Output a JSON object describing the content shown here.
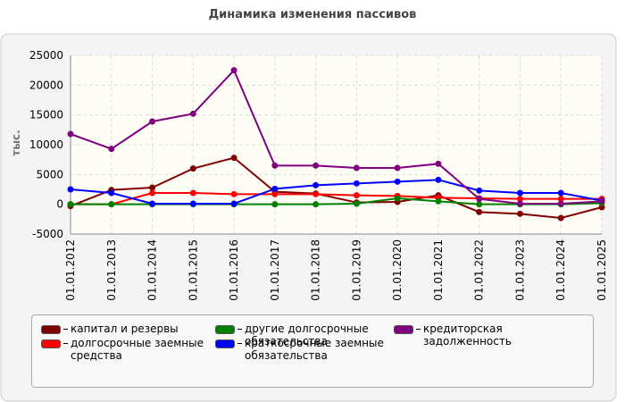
{
  "chart_data": {
    "type": "line",
    "title": "Динамика изменения пассивов",
    "y_label": "тыс.",
    "categories": [
      "01.01.2012",
      "01.01.2013",
      "01.01.2014",
      "01.01.2015",
      "01.01.2016",
      "01.01.2017",
      "01.01.2018",
      "01.01.2019",
      "01.01.2020",
      "01.01.2021",
      "01.01.2022",
      "01.01.2023",
      "01.01.2024",
      "01.01.2025"
    ],
    "series": [
      {
        "name": "капитал и резервы",
        "color": "#800000",
        "values": [
          -300,
          2400,
          2800,
          6000,
          7800,
          2100,
          1800,
          300,
          400,
          1500,
          -1300,
          -1600,
          -2300,
          -500
        ]
      },
      {
        "name": "долгосрочные заемные средства",
        "color": "#ff0000",
        "values": [
          0,
          0,
          1900,
          1900,
          1700,
          1700,
          1700,
          1500,
          1400,
          1100,
          1000,
          900,
          900,
          900
        ]
      },
      {
        "name": "другие долгосрочные обязательства",
        "color": "#008000",
        "values": [
          0,
          0,
          0,
          0,
          0,
          0,
          0,
          100,
          1000,
          500,
          0,
          0,
          0,
          200
        ]
      },
      {
        "name": "краткосрочные заемные обязательства",
        "color": "#0000ff",
        "values": [
          2500,
          1900,
          100,
          100,
          100,
          2600,
          3200,
          3500,
          3800,
          4100,
          2300,
          1900,
          1900,
          600
        ]
      },
      {
        "name": "кредиторская задолженность",
        "color": "#800080",
        "values": [
          11800,
          9300,
          13900,
          15200,
          22500,
          6500,
          6500,
          6100,
          6100,
          6800,
          900,
          100,
          100,
          500
        ]
      }
    ],
    "ylim": [
      -5000,
      25000
    ],
    "yticks": [
      -5000,
      0,
      5000,
      10000,
      15000,
      20000,
      25000
    ],
    "grid": true
  }
}
